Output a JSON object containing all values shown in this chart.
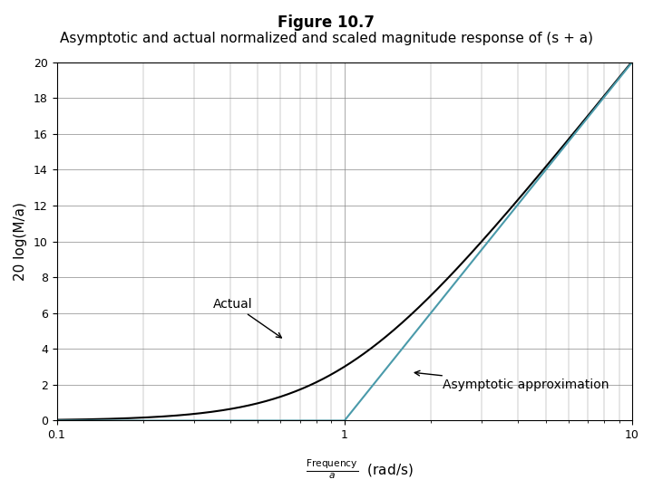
{
  "title_line1": "Figure 10.7",
  "title_line2": "Asymptotic and actual normalized and scaled magnitude response of (s + a)",
  "xlabel_main": "Frequency",
  "xlabel_sub": "a",
  "xlabel_units": "(rad/s)",
  "ylabel": "20 log(M/a)",
  "xmin": 0.1,
  "xmax": 10,
  "ymin": 0,
  "ymax": 20,
  "yticks": [
    0,
    2,
    4,
    6,
    8,
    10,
    12,
    14,
    16,
    18,
    20
  ],
  "xticks": [
    0.1,
    1,
    10
  ],
  "actual_color": "#000000",
  "asymptote_color": "#4a9aaa",
  "background_color": "#ffffff",
  "grid_color": "#888888",
  "annotation_actual": "Actual",
  "annotation_asymptote": "Asymptotic approximation",
  "title_fontsize": 12,
  "label_fontsize": 11,
  "annotation_fontsize": 10
}
